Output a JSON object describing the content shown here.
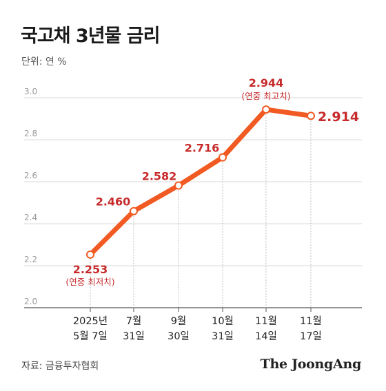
{
  "header": {
    "title": "국고채 3년물 금리",
    "unit": "단위: 연 %"
  },
  "footer": {
    "source": "자료: 금융투자협회",
    "brand": "The JoongAng"
  },
  "chart_data": {
    "type": "line",
    "title": "국고채 3년물 금리",
    "unit_label": "단위: 연 %",
    "ylim": [
      2.0,
      3.0
    ],
    "yticks": [
      "2.0",
      "2.2",
      "2.4",
      "2.6",
      "2.8",
      "3.0"
    ],
    "grid": true,
    "categories": [
      [
        "2025년",
        "5월 7일"
      ],
      [
        "7월",
        "31일"
      ],
      [
        "9월",
        "30일"
      ],
      [
        "10월",
        "31일"
      ],
      [
        "11월",
        "14일"
      ],
      [
        "11월",
        "17일"
      ]
    ],
    "values": [
      2.253,
      2.46,
      2.582,
      2.716,
      2.944,
      2.914
    ],
    "value_labels": [
      "2.253",
      "2.460",
      "2.582",
      "2.716",
      "2.944",
      "2.914"
    ],
    "annotations": [
      {
        "index": 0,
        "text": "(연중 최저치)"
      },
      {
        "index": 4,
        "text": "(연중 최고치)"
      }
    ],
    "line_color": "#f15a22",
    "label_color": "#c62a2a"
  }
}
